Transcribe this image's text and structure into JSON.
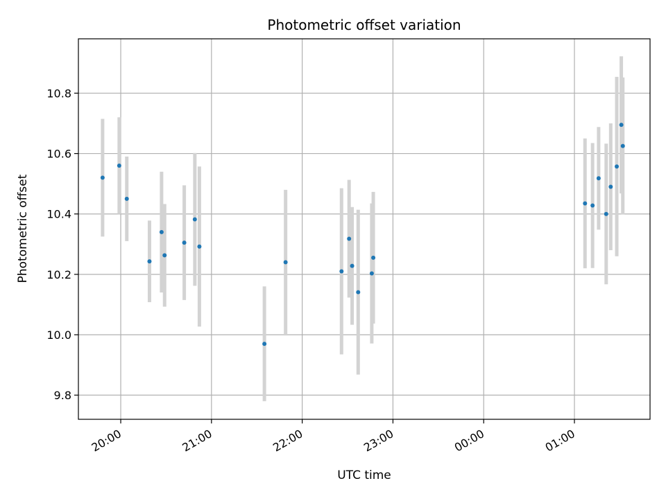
{
  "chart_data": {
    "type": "scatter",
    "title": "Photometric offset variation",
    "xlabel": "UTC time",
    "ylabel": "Photometric offset",
    "xlim": [
      "19:32",
      "01:50"
    ],
    "ylim": [
      9.72,
      10.98
    ],
    "x_ticks": [
      "20:00",
      "21:00",
      "22:00",
      "23:00",
      "00:00",
      "01:00"
    ],
    "y_ticks": [
      9.8,
      10.0,
      10.2,
      10.4,
      10.6,
      10.8
    ],
    "grid": true,
    "marker_color": "#1f77b4",
    "errorbar_color": "#d3d3d3",
    "points": [
      {
        "x": "19:48",
        "y": 10.52,
        "err": 0.195
      },
      {
        "x": "19:59",
        "y": 10.56,
        "err": 0.16
      },
      {
        "x": "20:04",
        "y": 10.45,
        "err": 0.14
      },
      {
        "x": "20:19",
        "y": 10.243,
        "err": 0.135
      },
      {
        "x": "20:27",
        "y": 10.34,
        "err": 0.2
      },
      {
        "x": "20:29",
        "y": 10.263,
        "err": 0.17
      },
      {
        "x": "20:42",
        "y": 10.305,
        "err": 0.19
      },
      {
        "x": "20:49",
        "y": 10.382,
        "err": 0.22
      },
      {
        "x": "20:52",
        "y": 10.292,
        "err": 0.265
      },
      {
        "x": "21:35",
        "y": 9.97,
        "err": 0.19
      },
      {
        "x": "21:49",
        "y": 10.24,
        "err": 0.24
      },
      {
        "x": "22:26",
        "y": 10.21,
        "err": 0.275
      },
      {
        "x": "22:31",
        "y": 10.318,
        "err": 0.195
      },
      {
        "x": "22:33",
        "y": 10.228,
        "err": 0.195
      },
      {
        "x": "22:37",
        "y": 10.141,
        "err": 0.273
      },
      {
        "x": "22:46",
        "y": 10.203,
        "err": 0.232
      },
      {
        "x": "22:47",
        "y": 10.255,
        "err": 0.218
      },
      {
        "x": "01:07",
        "y": 10.435,
        "err": 0.215
      },
      {
        "x": "01:12",
        "y": 10.428,
        "err": 0.207
      },
      {
        "x": "01:16",
        "y": 10.518,
        "err": 0.17
      },
      {
        "x": "01:21",
        "y": 10.4,
        "err": 0.233
      },
      {
        "x": "01:24",
        "y": 10.49,
        "err": 0.21
      },
      {
        "x": "01:28",
        "y": 10.557,
        "err": 0.297
      },
      {
        "x": "01:31",
        "y": 10.695,
        "err": 0.227
      },
      {
        "x": "01:32",
        "y": 10.625,
        "err": 0.227
      }
    ]
  }
}
